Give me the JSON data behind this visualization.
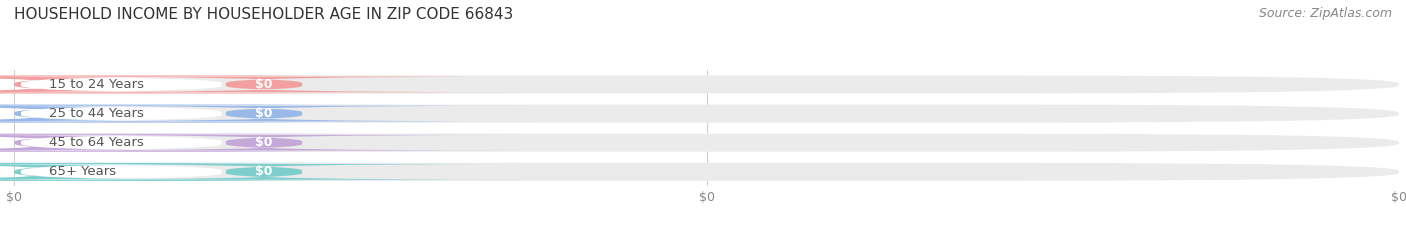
{
  "title": "HOUSEHOLD INCOME BY HOUSEHOLDER AGE IN ZIP CODE 66843",
  "source_text": "Source: ZipAtlas.com",
  "categories": [
    "15 to 24 Years",
    "25 to 44 Years",
    "45 to 64 Years",
    "65+ Years"
  ],
  "values": [
    0,
    0,
    0,
    0
  ],
  "bar_colors": [
    "#f2a0a0",
    "#9ab8e8",
    "#c4a8d8",
    "#7ecece"
  ],
  "background_color": "#ffffff",
  "title_fontsize": 11,
  "label_fontsize": 9.5,
  "tick_fontsize": 9,
  "source_fontsize": 9,
  "figsize": [
    14.06,
    2.33
  ],
  "dpi": 100
}
